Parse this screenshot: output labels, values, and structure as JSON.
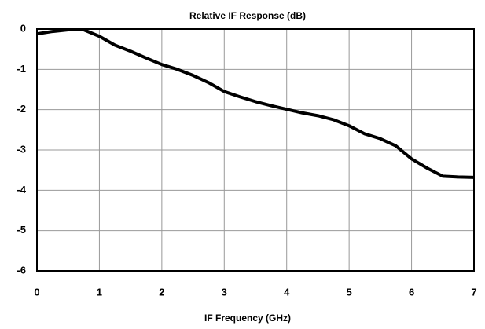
{
  "chart_data": {
    "type": "line",
    "title": "Relative IF Response (dB)",
    "x_label": "IF Frequency (GHz)",
    "x": [
      0,
      0.25,
      0.5,
      0.75,
      1,
      1.25,
      1.5,
      1.75,
      2,
      2.25,
      2.5,
      2.75,
      3,
      3.25,
      3.5,
      3.75,
      4,
      4.25,
      4.5,
      4.75,
      5,
      5.25,
      5.5,
      5.75,
      6,
      6.25,
      6.5,
      6.75,
      7
    ],
    "series": [
      {
        "color": "#000000",
        "values": [
          -0.12,
          -0.06,
          -0.02,
          -0.02,
          -0.18,
          -0.4,
          -0.55,
          -0.72,
          -0.88,
          -1.0,
          -1.15,
          -1.33,
          -1.55,
          -1.68,
          -1.8,
          -1.9,
          -1.99,
          -2.08,
          -2.15,
          -2.25,
          -2.4,
          -2.6,
          -2.72,
          -2.9,
          -3.22,
          -3.45,
          -3.65,
          -3.67,
          -3.68
        ]
      }
    ],
    "xlim": [
      0,
      7
    ],
    "xticks": [
      0,
      1,
      2,
      3,
      4,
      5,
      6,
      7
    ],
    "ylim": [
      -6,
      0
    ],
    "yticks": [
      0,
      -1,
      -2,
      -3,
      -4,
      -5,
      -6
    ],
    "grid": true
  }
}
